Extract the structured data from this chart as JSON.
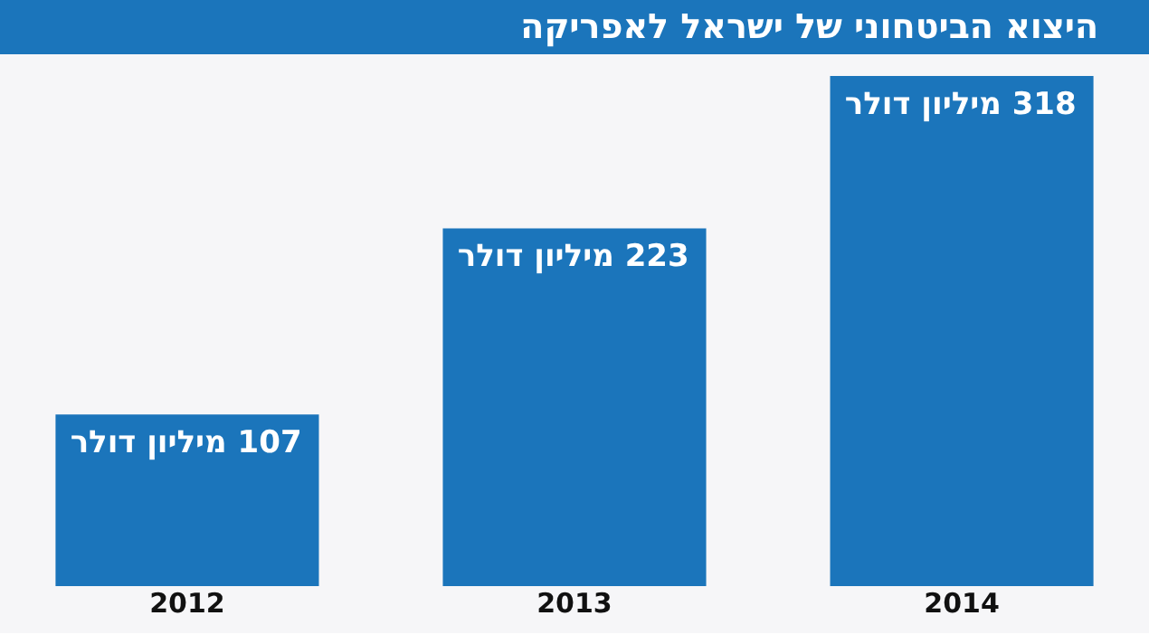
{
  "chart_data": {
    "type": "bar",
    "title": "היצוא הביטחוני של ישראל לאפריקה",
    "categories": [
      "2012",
      "2013",
      "2014"
    ],
    "values": [
      107,
      223,
      318
    ],
    "value_labels": [
      "107 מיליון דולר",
      "223 מיליון דולר",
      "318 מיליון דולר"
    ],
    "color": "#1b75bb",
    "grid": false,
    "tick_labels": "x"
  }
}
